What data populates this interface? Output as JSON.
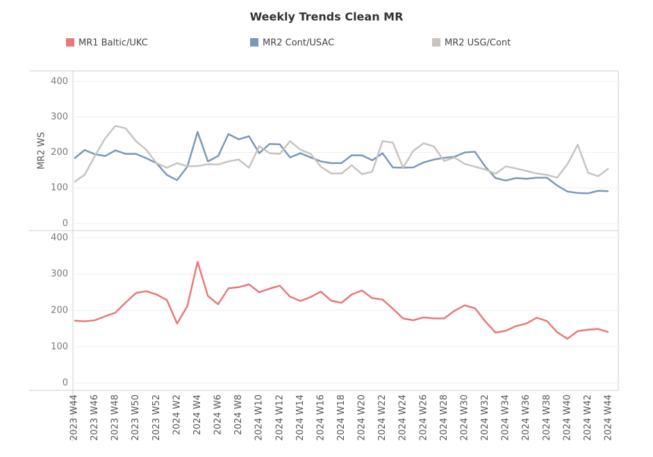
{
  "chart_data": [
    {
      "type": "line",
      "title": "Weekly Trends Clean MR",
      "ylabel": "MR2 WS",
      "ylim": [
        -20,
        430
      ],
      "yticks": [
        0,
        100,
        200,
        300,
        400
      ],
      "grid": true,
      "series": [
        {
          "name": "MR2 Cont/USAC",
          "color": "#7b98b8",
          "values": [
            183,
            207,
            195,
            190,
            206,
            196,
            196,
            184,
            170,
            137,
            122,
            160,
            258,
            175,
            190,
            252,
            237,
            246,
            198,
            224,
            223,
            186,
            198,
            186,
            175,
            170,
            170,
            192,
            192,
            178,
            198,
            158,
            157,
            158,
            172,
            180,
            185,
            188,
            200,
            202,
            160,
            128,
            121,
            128,
            126,
            129,
            129,
            107,
            90,
            86,
            85,
            92,
            91
          ]
        },
        {
          "name": "MR2 USG/Cont",
          "color": "#c9c3c0",
          "values": [
            117,
            137,
            190,
            240,
            275,
            268,
            232,
            208,
            170,
            157,
            170,
            161,
            162,
            167,
            166,
            175,
            180,
            157,
            218,
            198,
            196,
            232,
            208,
            196,
            160,
            141,
            141,
            164,
            139,
            146,
            232,
            228,
            157,
            205,
            226,
            217,
            176,
            186,
            168,
            160,
            152,
            140,
            161,
            155,
            148,
            141,
            137,
            129,
            167,
            222,
            143,
            133,
            155
          ]
        }
      ]
    },
    {
      "type": "line",
      "categories": [
        "2023 W44",
        null,
        "2023 W46",
        null,
        "2023 W48",
        null,
        "2023 W50",
        null,
        "2023 W52",
        null,
        "2024 W2",
        null,
        "2024 W4",
        null,
        "2024 W6",
        null,
        "2024 W8",
        null,
        "2024 W10",
        null,
        "2024 W12",
        null,
        "2024 W14",
        null,
        "2024 W16",
        null,
        "2024 W18",
        null,
        "2024 W20",
        null,
        "2024 W22",
        null,
        "2024 W24",
        null,
        "2024 W26",
        null,
        "2024 W28",
        null,
        "2024 W30",
        null,
        "2024 W32",
        null,
        "2024 W34",
        null,
        "2024 W36",
        null,
        "2024 W38",
        null,
        "2024 W40",
        null,
        "2024 W42",
        null,
        "2024 W44"
      ],
      "ylim": [
        -20,
        420
      ],
      "yticks": [
        0,
        100,
        200,
        300,
        400
      ],
      "grid": true,
      "series": [
        {
          "name": "MR1 Baltic/UKC",
          "color": "#e8787a",
          "values": [
            172,
            170,
            173,
            184,
            194,
            222,
            248,
            253,
            244,
            229,
            164,
            212,
            334,
            240,
            217,
            261,
            264,
            272,
            250,
            260,
            268,
            238,
            226,
            237,
            252,
            227,
            221,
            244,
            255,
            234,
            230,
            205,
            178,
            173,
            181,
            178,
            178,
            199,
            214,
            206,
            170,
            139,
            144,
            157,
            164,
            180,
            171,
            140,
            122,
            143,
            147,
            149,
            140
          ]
        }
      ]
    }
  ]
}
